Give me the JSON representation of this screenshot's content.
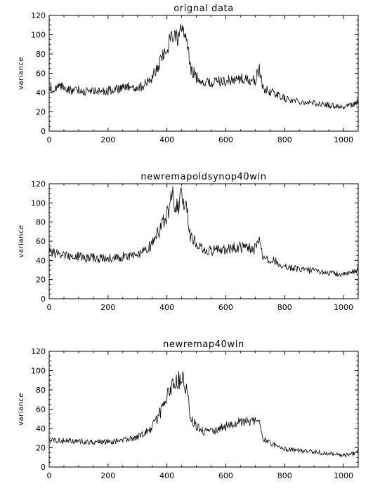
{
  "chart_data": [
    {
      "type": "line",
      "title": "orignal data",
      "xlabel": "",
      "ylabel": "variance",
      "xlim": [
        0,
        1050
      ],
      "ylim": [
        0,
        120
      ],
      "xticks": [
        "0",
        "200",
        "400",
        "600",
        "800",
        "1000"
      ],
      "yticks": [
        "0",
        "20",
        "40",
        "60",
        "80",
        "100",
        "120"
      ],
      "grid": false,
      "series": [
        {
          "x": [
            0,
            25,
            50,
            75,
            100,
            125,
            150,
            175,
            200,
            225,
            250,
            275,
            300,
            325,
            350,
            375,
            400,
            410,
            420,
            430,
            440,
            450,
            460,
            470,
            480,
            500,
            525,
            550,
            575,
            600,
            625,
            650,
            675,
            700,
            715,
            725,
            750,
            775,
            800,
            825,
            850,
            875,
            900,
            925,
            950,
            975,
            1000,
            1025,
            1050
          ],
          "values": [
            45,
            44,
            46,
            42,
            43,
            41,
            42,
            41,
            42,
            43,
            44,
            46,
            45,
            48,
            56,
            70,
            85,
            96,
            102,
            95,
            98,
            104,
            101,
            88,
            65,
            56,
            51,
            50,
            52,
            52,
            53,
            54,
            53,
            52,
            66,
            44,
            41,
            38,
            34,
            32,
            31,
            30,
            29,
            28,
            27,
            26,
            25,
            27,
            31
          ]
        }
      ]
    },
    {
      "type": "line",
      "title": "newremapoldsynop40win",
      "xlabel": "",
      "ylabel": "variance",
      "xlim": [
        0,
        1050
      ],
      "ylim": [
        0,
        120
      ],
      "xticks": [
        "0",
        "200",
        "400",
        "600",
        "800",
        "1000"
      ],
      "yticks": [
        "0",
        "20",
        "40",
        "60",
        "80",
        "100",
        "120"
      ],
      "grid": false,
      "series": [
        {
          "x": [
            0,
            25,
            50,
            75,
            100,
            125,
            150,
            175,
            200,
            225,
            250,
            275,
            300,
            325,
            350,
            375,
            400,
            410,
            420,
            430,
            440,
            450,
            460,
            470,
            480,
            500,
            525,
            550,
            575,
            600,
            625,
            650,
            675,
            700,
            715,
            725,
            750,
            775,
            800,
            825,
            850,
            875,
            900,
            925,
            950,
            975,
            1000,
            1025,
            1050
          ],
          "values": [
            50,
            47,
            46,
            44,
            44,
            42,
            43,
            42,
            43,
            43,
            44,
            45,
            46,
            49,
            57,
            72,
            88,
            98,
            106,
            96,
            99,
            106,
            103,
            89,
            66,
            57,
            51,
            50,
            52,
            52,
            53,
            54,
            53,
            52,
            66,
            44,
            41,
            38,
            34,
            32,
            31,
            30,
            29,
            28,
            27,
            26,
            25,
            27,
            31
          ]
        }
      ]
    },
    {
      "type": "line",
      "title": "newremap40win",
      "xlabel": "",
      "ylabel": "variance",
      "xlim": [
        0,
        1050
      ],
      "ylim": [
        0,
        120
      ],
      "xticks": [
        "0",
        "200",
        "400",
        "600",
        "800",
        "1000"
      ],
      "yticks": [
        "0",
        "20",
        "40",
        "60",
        "80",
        "100",
        "120"
      ],
      "grid": false,
      "series": [
        {
          "x": [
            0,
            25,
            50,
            75,
            100,
            125,
            150,
            175,
            200,
            225,
            250,
            275,
            300,
            325,
            350,
            375,
            400,
            410,
            420,
            430,
            440,
            450,
            460,
            470,
            480,
            500,
            525,
            550,
            575,
            600,
            625,
            650,
            675,
            700,
            715,
            725,
            750,
            775,
            800,
            825,
            850,
            875,
            900,
            925,
            950,
            975,
            1000,
            1025,
            1050
          ],
          "values": [
            28,
            28,
            27,
            27,
            27,
            26,
            26,
            26,
            26,
            27,
            28,
            29,
            31,
            35,
            41,
            55,
            72,
            82,
            88,
            86,
            90,
            92,
            88,
            75,
            52,
            42,
            37,
            36,
            40,
            42,
            45,
            47,
            48,
            47,
            44,
            30,
            25,
            22,
            19,
            18,
            17,
            16,
            16,
            15,
            14,
            13,
            12,
            13,
            16
          ]
        }
      ]
    }
  ]
}
